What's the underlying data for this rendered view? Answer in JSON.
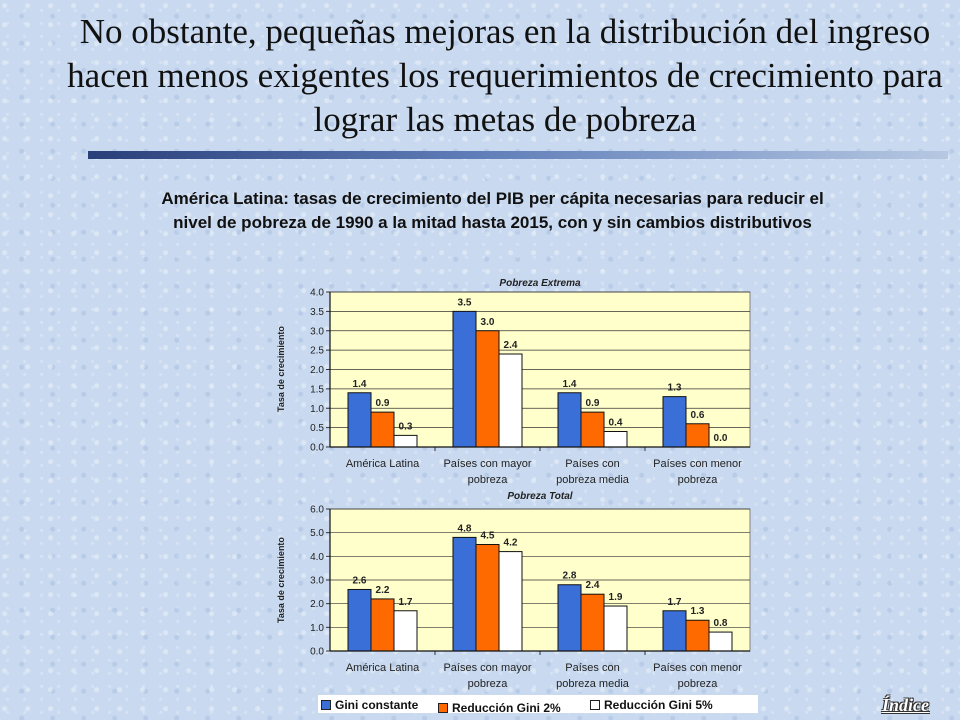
{
  "slide": {
    "title": "No obstante, pequeñas mejoras en la distribución del ingreso hacen menos exigentes los requerimientos de crecimiento para lograr las metas de pobreza",
    "subtitle": "América Latina: tasas de crecimiento del PIB per cápita necesarias para reducir el nivel de pobreza de 1990 a la mitad hasta 2015, con y sin cambios distributivos",
    "index_link": "Índice"
  },
  "legend": [
    {
      "label": "Gini constante",
      "color": "#3a6fd8"
    },
    {
      "label": "Reducción Gini 2%",
      "color": "#ff6a00"
    },
    {
      "label": "Reducción Gini 5%",
      "color": "#ffffff"
    }
  ],
  "chart_data": [
    {
      "type": "bar",
      "title": "Pobreza Extrema",
      "ylabel": "Tasa de crecimiento",
      "ylim": [
        0,
        4
      ],
      "yticks": [
        "0.0",
        "0.5",
        "1.0",
        "1.5",
        "2.0",
        "2.5",
        "3.0",
        "3.5",
        "4.0"
      ],
      "categories": [
        [
          "América Latina"
        ],
        [
          "Países con mayor",
          "pobreza"
        ],
        [
          "Países con",
          "pobreza media"
        ],
        [
          "Países con menor",
          "pobreza"
        ]
      ],
      "series": [
        {
          "name": "Gini constante",
          "color": "#3a6fd8",
          "values": [
            1.4,
            3.5,
            1.4,
            1.3
          ],
          "labels": [
            "1.4",
            "3.5",
            "1.4",
            "1.3"
          ]
        },
        {
          "name": "Reducción Gini 2%",
          "color": "#ff6a00",
          "values": [
            0.9,
            3.0,
            0.9,
            0.6
          ],
          "labels": [
            "0.9",
            "3.0",
            "0.9",
            "0.6"
          ]
        },
        {
          "name": "Reducción Gini 5%",
          "color": "#ffffff",
          "values": [
            0.3,
            2.4,
            0.4,
            0.0
          ],
          "labels": [
            "0.3",
            "2.4",
            "0.4",
            "0.0"
          ]
        }
      ]
    },
    {
      "type": "bar",
      "title": "Pobreza Total",
      "ylabel": "Tasa de crecimiento",
      "ylim": [
        0,
        6
      ],
      "yticks": [
        "0.0",
        "1.0",
        "2.0",
        "3.0",
        "4.0",
        "5.0",
        "6.0"
      ],
      "categories": [
        [
          "América Latina"
        ],
        [
          "Países con mayor",
          "pobreza"
        ],
        [
          "Países con",
          "pobreza media"
        ],
        [
          "Países con menor",
          "pobreza"
        ]
      ],
      "series": [
        {
          "name": "Gini constante",
          "color": "#3a6fd8",
          "values": [
            2.6,
            4.8,
            2.8,
            1.7
          ],
          "labels": [
            "2.6",
            "4.8",
            "2.8",
            "1.7"
          ]
        },
        {
          "name": "Reducción Gini 2%",
          "color": "#ff6a00",
          "values": [
            2.2,
            4.5,
            2.4,
            1.3
          ],
          "labels": [
            "2.2",
            "4.5",
            "2.4",
            "1.3"
          ]
        },
        {
          "name": "Reducción Gini 5%",
          "color": "#ffffff",
          "values": [
            1.7,
            4.2,
            1.9,
            0.8
          ],
          "labels": [
            "1.7",
            "4.2",
            "1.9",
            "0.8"
          ]
        }
      ]
    }
  ]
}
